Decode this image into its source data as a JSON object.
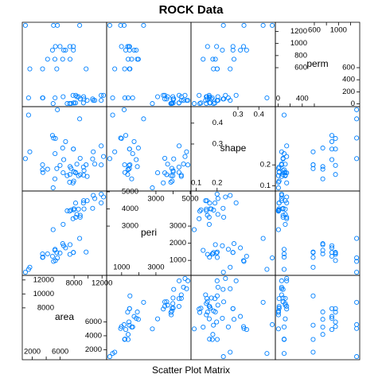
{
  "chart_data": {
    "type": "splom",
    "title": "ROCK Data",
    "xlabel": "Scatter Plot Matrix",
    "color": "#0080ff",
    "variables": [
      {
        "name": "area",
        "lim": [
          570,
          12660
        ],
        "ticks_low": [
          2000,
          4000,
          6000
        ],
        "ticks_high": [
          8000,
          10000,
          12000
        ],
        "values": [
          4990,
          7002,
          7558,
          7352,
          7943,
          7979,
          9333,
          8209,
          8393,
          6425,
          9364,
          8624,
          10651,
          8868,
          9417,
          8874,
          10962,
          10743,
          11878,
          9867,
          7838,
          11876,
          12212,
          8233,
          6360,
          4193,
          7416,
          5246,
          6509,
          4895,
          6775,
          7894,
          5980,
          5318,
          7392,
          7894,
          3469,
          1468,
          3524,
          5267,
          5048,
          1016,
          5605,
          8793,
          3475,
          1651,
          5514,
          9718
        ]
      },
      {
        "name": "peri",
        "lim": [
          126,
          5046
        ],
        "ticks_low": [
          1000,
          2000,
          3000
        ],
        "ticks_high": [
          3000,
          4000,
          5000
        ],
        "values": [
          2791.9,
          3892.6,
          3930.66,
          3869.32,
          3948.54,
          4010.15,
          4345.75,
          4344.75,
          3682.04,
          3098.65,
          4480.05,
          3986.24,
          4036.54,
          3518.04,
          3999.37,
          3629.07,
          4608.66,
          4787.62,
          4864.22,
          4479.41,
          3428.74,
          4353.14,
          4697.65,
          3518.44,
          1977.39,
          1379.35,
          1916.24,
          1585.42,
          1851.21,
          1239.66,
          1728.14,
          1461.06,
          1426.76,
          990.388,
          1350.76,
          1461.06,
          1376.7,
          476.322,
          1189.46,
          1644.96,
          941.543,
          308.642,
          1145.69,
          2280.49,
          1174.11,
          597.808,
          1455.88,
          1485.58
        ]
      },
      {
        "name": "shape",
        "lim": [
          0.075,
          0.479
        ],
        "ticks_low": [
          0.1,
          0.2
        ],
        "ticks_high": [
          0.3,
          0.4
        ],
        "values": [
          0.0903296,
          0.148622,
          0.183312,
          0.117063,
          0.122417,
          0.167045,
          0.189651,
          0.164127,
          0.203654,
          0.162394,
          0.150944,
          0.148141,
          0.228595,
          0.231623,
          0.172567,
          0.153481,
          0.204314,
          0.262727,
          0.200071,
          0.14481,
          0.113852,
          0.291029,
          0.240077,
          0.161865,
          0.280887,
          0.179455,
          0.191802,
          0.133083,
          0.225214,
          0.341273,
          0.311646,
          0.276016,
          0.197653,
          0.326635,
          0.154192,
          0.276016,
          0.176969,
          0.438712,
          0.163586,
          0.253832,
          0.328641,
          0.230081,
          0.464125,
          0.420477,
          0.200744,
          0.262651,
          0.182453,
          0.200447
        ]
      },
      {
        "name": "perm",
        "lim": [
          -45,
          1351
        ],
        "ticks_low": [
          0,
          200,
          400,
          600
        ],
        "ticks_high": [
          600,
          800,
          1000,
          1200
        ],
        "values": [
          6.3,
          6.3,
          6.3,
          6.3,
          17.1,
          17.1,
          17.1,
          17.1,
          119,
          119,
          119,
          119,
          82.4,
          82.4,
          82.4,
          82.4,
          58.6,
          58.6,
          58.6,
          58.6,
          142,
          142,
          142,
          142,
          740,
          740,
          740,
          740,
          890,
          890,
          890,
          890,
          950,
          950,
          950,
          950,
          100,
          100,
          100,
          100,
          1300,
          1300,
          1300,
          1300,
          580,
          580,
          580,
          580
        ]
      }
    ]
  }
}
